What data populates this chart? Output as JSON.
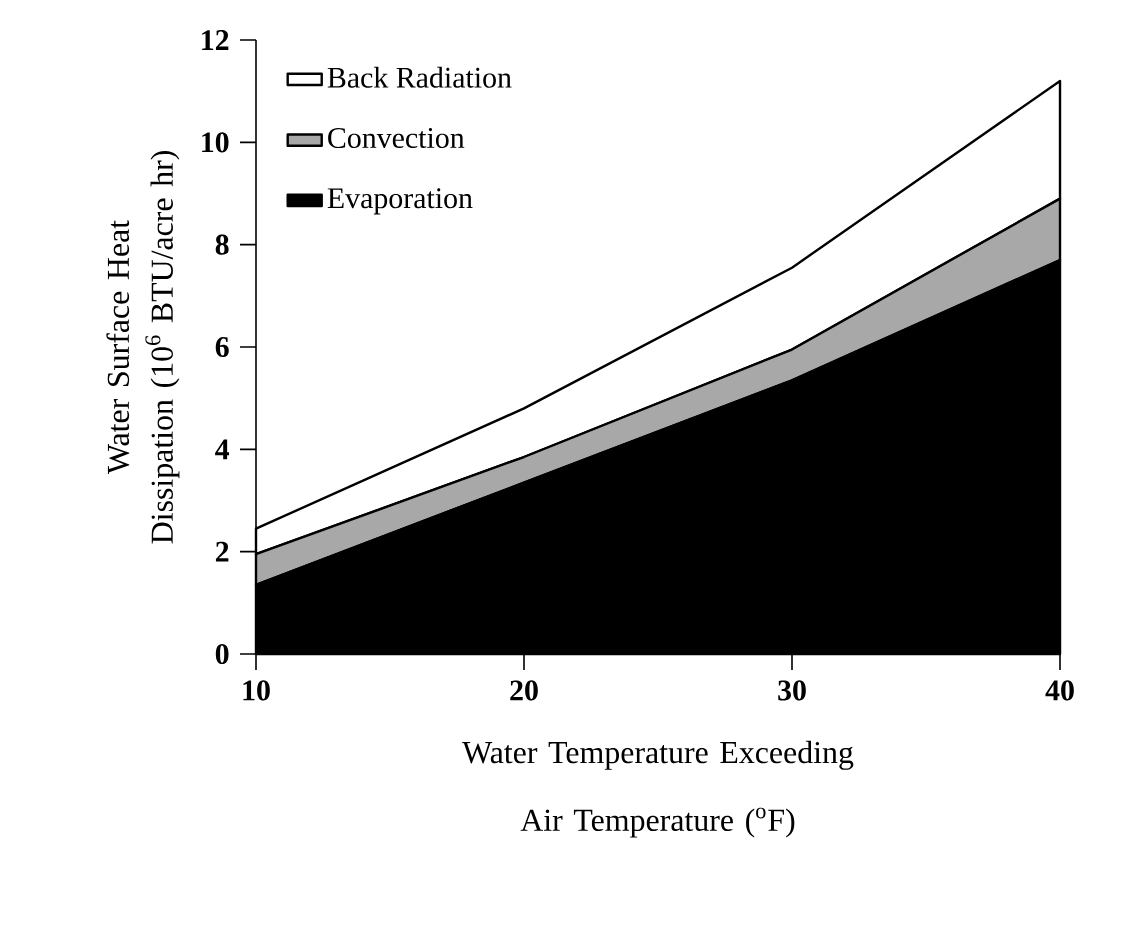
{
  "chart_data": {
    "type": "area",
    "stacked": true,
    "xlabel": "Water Temperature Exceeding Air Temperature ($^{o}$F)",
    "ylabel": "Water Surface Heat Dissipation (10$^{6}$ BTU/acre hr)",
    "x": [
      10,
      20,
      30,
      40
    ],
    "series": [
      {
        "name": "Evaporation",
        "color": "#000000",
        "values": [
          1.35,
          3.35,
          5.35,
          7.7
        ]
      },
      {
        "name": "Convection",
        "color": "#a8a8a8",
        "values": [
          0.6,
          0.5,
          0.6,
          1.2
        ]
      },
      {
        "name": "Back Radiation",
        "color": "#ffffff",
        "values": [
          0.5,
          0.95,
          1.6,
          2.3
        ]
      }
    ],
    "xlim": [
      10,
      40
    ],
    "xticks": [
      10,
      20,
      30,
      40
    ],
    "ylim": [
      0,
      12
    ],
    "yticks": [
      0,
      2,
      4,
      6,
      8,
      10,
      12
    ],
    "grid": false,
    "legend": "top left"
  }
}
